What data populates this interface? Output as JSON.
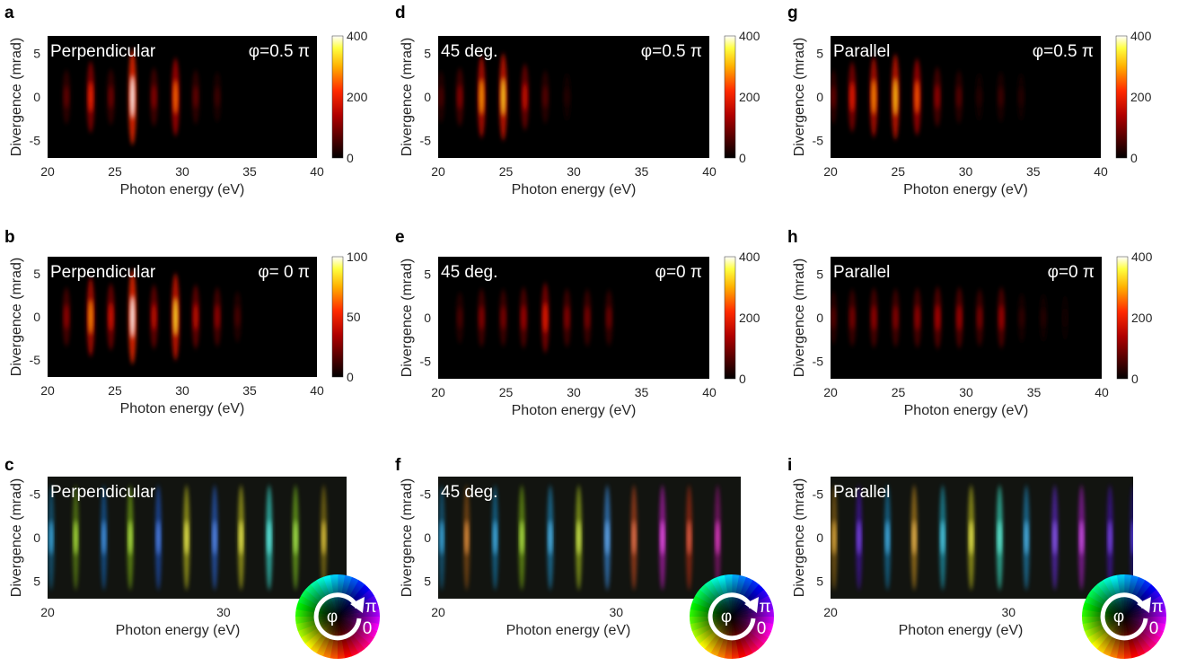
{
  "chart_data": [
    {
      "panel": "a",
      "type": "heatmap",
      "overlay_left": "Perpendicular",
      "overlay_right": "φ=0.5 π",
      "xlabel": "Photon energy (eV)",
      "ylabel": "Divergence (mrad)",
      "xlim": [
        20,
        40
      ],
      "ylim": [
        -7,
        7
      ],
      "xticks": [
        "20",
        "25",
        "30",
        "35",
        "40"
      ],
      "yticks": [
        "5",
        "0",
        "-5"
      ],
      "colorbar": {
        "ticks": [
          "400",
          "200",
          "0"
        ],
        "max": 400
      },
      "peaks": [
        {
          "x": 21.4,
          "intensity": 80
        },
        {
          "x": 23.2,
          "intensity": 210
        },
        {
          "x": 24.7,
          "intensity": 90
        },
        {
          "x": 26.3,
          "intensity": 400
        },
        {
          "x": 27.9,
          "intensity": 110
        },
        {
          "x": 29.5,
          "intensity": 260
        },
        {
          "x": 31.0,
          "intensity": 80
        },
        {
          "x": 32.6,
          "intensity": 50
        }
      ]
    },
    {
      "panel": "b",
      "type": "heatmap",
      "overlay_left": "Perpendicular",
      "overlay_right": "φ= 0 π",
      "xlabel": "Photon energy (eV)",
      "ylabel": "Divergence (mrad)",
      "xlim": [
        20,
        40
      ],
      "ylim": [
        -7,
        7
      ],
      "xticks": [
        "20",
        "25",
        "30",
        "35",
        "40"
      ],
      "yticks": [
        "5",
        "0",
        "-5"
      ],
      "colorbar": {
        "ticks": [
          "100",
          "50",
          "0"
        ],
        "max": 100
      },
      "peaks": [
        {
          "x": 21.4,
          "intensity": 30
        },
        {
          "x": 23.2,
          "intensity": 70
        },
        {
          "x": 24.7,
          "intensity": 45
        },
        {
          "x": 26.3,
          "intensity": 100
        },
        {
          "x": 27.9,
          "intensity": 40
        },
        {
          "x": 29.5,
          "intensity": 85
        },
        {
          "x": 31.0,
          "intensity": 40
        },
        {
          "x": 32.6,
          "intensity": 30
        },
        {
          "x": 34.1,
          "intensity": 15
        }
      ]
    },
    {
      "panel": "c",
      "type": "heatmap",
      "overlay_left": "Perpendicular",
      "xlabel": "Photon energy (eV)",
      "ylabel": "Divergence (mrad)",
      "xlim": [
        20,
        37
      ],
      "ylim": [
        -7,
        7
      ],
      "xticks": [
        "20",
        "30"
      ],
      "yticks": [
        "-5",
        "0",
        "5"
      ],
      "phase_wheel": {
        "labels": [
          "φ",
          "π",
          "0"
        ]
      },
      "peaks": [
        {
          "x": 20.2,
          "intensity": 0.4,
          "hue": 200
        },
        {
          "x": 21.6,
          "intensity": 0.4,
          "hue": 80
        },
        {
          "x": 23.2,
          "intensity": 0.5,
          "hue": 210
        },
        {
          "x": 24.7,
          "intensity": 0.5,
          "hue": 80
        },
        {
          "x": 26.3,
          "intensity": 0.6,
          "hue": 220
        },
        {
          "x": 27.9,
          "intensity": 0.6,
          "hue": 60
        },
        {
          "x": 29.5,
          "intensity": 0.7,
          "hue": 220
        },
        {
          "x": 31.0,
          "intensity": 0.6,
          "hue": 60
        },
        {
          "x": 32.6,
          "intensity": 0.8,
          "hue": 175
        },
        {
          "x": 34.1,
          "intensity": 0.6,
          "hue": 85
        },
        {
          "x": 35.7,
          "intensity": 0.4,
          "hue": 50
        }
      ]
    },
    {
      "panel": "d",
      "type": "heatmap",
      "overlay_left": "45 deg.",
      "overlay_right": "φ=0.5 π",
      "xlabel": "Photon energy (eV)",
      "ylabel": "Divergence (mrad)",
      "xlim": [
        20,
        40
      ],
      "ylim": [
        -7,
        7
      ],
      "xticks": [
        "20",
        "25",
        "30",
        "35",
        "40"
      ],
      "yticks": [
        "5",
        "0",
        "-5"
      ],
      "colorbar": {
        "ticks": [
          "400",
          "200",
          "0"
        ],
        "max": 400
      },
      "peaks": [
        {
          "x": 20.2,
          "intensity": 60
        },
        {
          "x": 21.6,
          "intensity": 110
        },
        {
          "x": 23.2,
          "intensity": 290
        },
        {
          "x": 24.8,
          "intensity": 330
        },
        {
          "x": 26.4,
          "intensity": 170
        },
        {
          "x": 27.9,
          "intensity": 70
        },
        {
          "x": 29.5,
          "intensity": 30
        }
      ]
    },
    {
      "panel": "e",
      "type": "heatmap",
      "overlay_left": "45 deg.",
      "overlay_right": "φ=0  π",
      "xlabel": "Photon energy (eV)",
      "ylabel": "Divergence (mrad)",
      "xlim": [
        20,
        40
      ],
      "ylim": [
        -7,
        7
      ],
      "xticks": [
        "20",
        "25",
        "30",
        "35",
        "40"
      ],
      "yticks": [
        "5",
        "0",
        "-5"
      ],
      "colorbar": {
        "ticks": [
          "400",
          "200",
          "0"
        ],
        "max": 400
      },
      "peaks": [
        {
          "x": 21.6,
          "intensity": 60
        },
        {
          "x": 23.2,
          "intensity": 110
        },
        {
          "x": 24.8,
          "intensity": 100
        },
        {
          "x": 26.3,
          "intensity": 130
        },
        {
          "x": 27.9,
          "intensity": 200
        },
        {
          "x": 29.5,
          "intensity": 110
        },
        {
          "x": 31.0,
          "intensity": 100
        },
        {
          "x": 32.6,
          "intensity": 90
        }
      ]
    },
    {
      "panel": "f",
      "type": "heatmap",
      "overlay_left": "45 deg.",
      "xlabel": "Photon energy (eV)",
      "ylabel": "Divergence (mrad)",
      "xlim": [
        20,
        37
      ],
      "ylim": [
        -7,
        7
      ],
      "xticks": [
        "20",
        "30"
      ],
      "yticks": [
        "-5",
        "0",
        "5"
      ],
      "phase_wheel": {
        "labels": [
          "φ",
          "π",
          "0"
        ]
      },
      "peaks": [
        {
          "x": 20.2,
          "intensity": 0.4,
          "hue": 200
        },
        {
          "x": 21.6,
          "intensity": 0.4,
          "hue": 30
        },
        {
          "x": 23.2,
          "intensity": 0.5,
          "hue": 200
        },
        {
          "x": 24.7,
          "intensity": 0.5,
          "hue": 80
        },
        {
          "x": 26.3,
          "intensity": 0.6,
          "hue": 200
        },
        {
          "x": 27.9,
          "intensity": 0.6,
          "hue": 70
        },
        {
          "x": 29.5,
          "intensity": 0.8,
          "hue": 210
        },
        {
          "x": 31.0,
          "intensity": 0.6,
          "hue": 15
        },
        {
          "x": 32.6,
          "intensity": 0.6,
          "hue": 300
        },
        {
          "x": 34.1,
          "intensity": 0.5,
          "hue": 10
        },
        {
          "x": 35.7,
          "intensity": 0.4,
          "hue": 310
        }
      ]
    },
    {
      "panel": "g",
      "type": "heatmap",
      "overlay_left": "Parallel",
      "overlay_right": "φ=0.5 π",
      "xlabel": "Photon energy (eV)",
      "ylabel": "Divergence (mrad)",
      "xlim": [
        20,
        40
      ],
      "ylim": [
        -7,
        7
      ],
      "xticks": [
        "20",
        "25",
        "30",
        "35",
        "40"
      ],
      "yticks": [
        "5",
        "0",
        "-5"
      ],
      "colorbar": {
        "ticks": [
          "400",
          "200",
          "0"
        ],
        "max": 400
      },
      "peaks": [
        {
          "x": 20.2,
          "intensity": 80
        },
        {
          "x": 21.6,
          "intensity": 200
        },
        {
          "x": 23.2,
          "intensity": 280
        },
        {
          "x": 24.8,
          "intensity": 320
        },
        {
          "x": 26.4,
          "intensity": 250
        },
        {
          "x": 27.9,
          "intensity": 120
        },
        {
          "x": 29.5,
          "intensity": 70
        },
        {
          "x": 31.0,
          "intensity": 30
        },
        {
          "x": 32.6,
          "intensity": 50
        },
        {
          "x": 34.1,
          "intensity": 30
        }
      ]
    },
    {
      "panel": "h",
      "type": "heatmap",
      "overlay_left": "Parallel",
      "overlay_right": "φ=0  π",
      "xlabel": "Photon energy (eV)",
      "ylabel": "Divergence (mrad)",
      "xlim": [
        20,
        40
      ],
      "ylim": [
        -7,
        7
      ],
      "xticks": [
        "20",
        "25",
        "30",
        "35",
        "40"
      ],
      "yticks": [
        "5",
        "0",
        "-5"
      ],
      "colorbar": {
        "ticks": [
          "400",
          "200",
          "0"
        ],
        "max": 400
      },
      "peaks": [
        {
          "x": 20.2,
          "intensity": 70
        },
        {
          "x": 21.6,
          "intensity": 100
        },
        {
          "x": 23.2,
          "intensity": 120
        },
        {
          "x": 24.8,
          "intensity": 110
        },
        {
          "x": 26.4,
          "intensity": 120
        },
        {
          "x": 27.9,
          "intensity": 140
        },
        {
          "x": 29.5,
          "intensity": 130
        },
        {
          "x": 31.0,
          "intensity": 100
        },
        {
          "x": 32.6,
          "intensity": 130
        },
        {
          "x": 34.1,
          "intensity": 40
        },
        {
          "x": 35.7,
          "intensity": 30
        },
        {
          "x": 37.3,
          "intensity": 20
        }
      ]
    },
    {
      "panel": "i",
      "type": "heatmap",
      "overlay_left": "Parallel",
      "xlabel": "Photon energy (eV)",
      "ylabel": "Divergence (mrad)",
      "xlim": [
        20,
        37
      ],
      "ylim": [
        -7,
        7
      ],
      "xticks": [
        "20",
        "30"
      ],
      "yticks": [
        "-5",
        "0",
        "5"
      ],
      "phase_wheel": {
        "labels": [
          "φ",
          "π",
          "0"
        ]
      },
      "peaks": [
        {
          "x": 20.2,
          "intensity": 0.4,
          "hue": 40
        },
        {
          "x": 21.6,
          "intensity": 0.5,
          "hue": 260
        },
        {
          "x": 23.2,
          "intensity": 0.5,
          "hue": 200
        },
        {
          "x": 24.7,
          "intensity": 0.6,
          "hue": 40
        },
        {
          "x": 26.3,
          "intensity": 0.6,
          "hue": 190
        },
        {
          "x": 27.9,
          "intensity": 0.6,
          "hue": 60
        },
        {
          "x": 29.5,
          "intensity": 0.8,
          "hue": 170
        },
        {
          "x": 31.0,
          "intensity": 0.6,
          "hue": 200
        },
        {
          "x": 32.6,
          "intensity": 0.7,
          "hue": 260
        },
        {
          "x": 34.1,
          "intensity": 0.6,
          "hue": 290
        },
        {
          "x": 35.7,
          "intensity": 0.5,
          "hue": 260
        },
        {
          "x": 37.0,
          "intensity": 0.4,
          "hue": 250
        }
      ]
    }
  ]
}
